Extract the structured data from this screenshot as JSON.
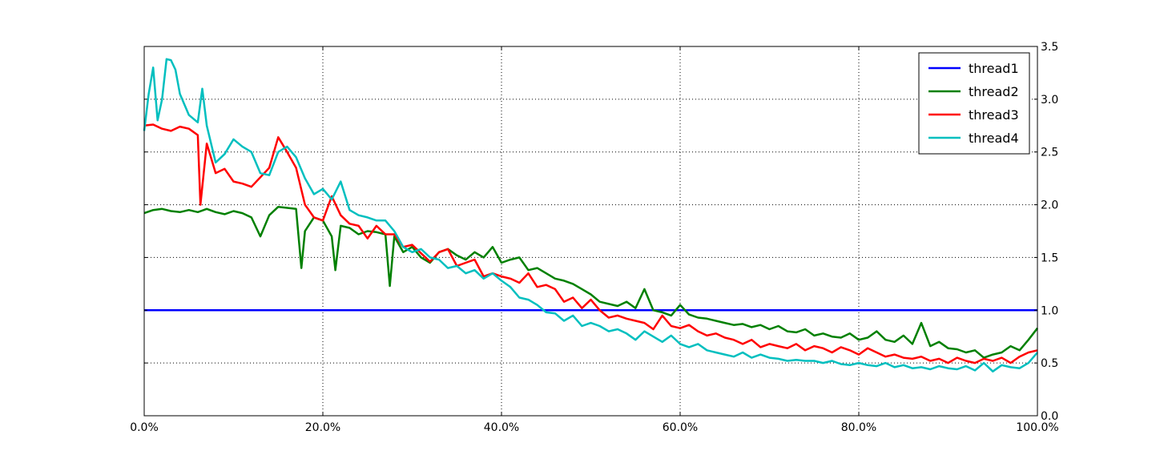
{
  "chart_data": {
    "type": "line",
    "title": "",
    "xlabel": "",
    "ylabel": "",
    "xlim": [
      0,
      100
    ],
    "ylim": [
      0,
      3.5
    ],
    "x_ticks": [
      0,
      20,
      40,
      60,
      80,
      100
    ],
    "x_tick_labels": [
      "0.0%",
      "20.0%",
      "40.0%",
      "60.0%",
      "80.0%",
      "100.0%"
    ],
    "y_ticks": [
      0,
      0.5,
      1.0,
      1.5,
      2.0,
      2.5,
      3.0,
      3.5
    ],
    "y_tick_labels": [
      "0.0",
      "0.5",
      "1.0",
      "1.5",
      "2.0",
      "2.5",
      "3.0",
      "3.5"
    ],
    "y_axis_side": "right",
    "grid": true,
    "legend_position": "top-right",
    "series": [
      {
        "name": "thread1",
        "color": "#0000ff",
        "x": [
          0,
          100
        ],
        "y": [
          1.0,
          1.0
        ]
      },
      {
        "name": "thread2",
        "color": "#008000",
        "x": [
          0,
          1,
          2,
          3,
          4,
          5,
          6,
          7,
          8,
          9,
          10,
          11,
          12,
          13,
          14,
          15,
          16,
          17,
          17.6,
          18,
          19,
          20,
          21,
          21.4,
          22,
          23,
          24,
          25,
          26,
          27,
          27.5,
          28,
          29,
          30,
          31,
          32,
          33,
          34,
          35,
          36,
          37,
          38,
          39,
          40,
          41,
          42,
          43,
          44,
          45,
          46,
          47,
          48,
          49,
          50,
          51,
          52,
          53,
          54,
          55,
          56,
          57,
          58,
          59,
          60,
          61,
          62,
          63,
          64,
          65,
          66,
          67,
          68,
          69,
          70,
          71,
          72,
          73,
          74,
          75,
          76,
          77,
          78,
          79,
          80,
          81,
          82,
          83,
          84,
          85,
          86,
          87,
          88,
          89,
          90,
          91,
          92,
          93,
          94,
          95,
          96,
          97,
          98,
          99,
          100
        ],
        "y": [
          1.92,
          1.95,
          1.96,
          1.94,
          1.93,
          1.95,
          1.93,
          1.96,
          1.93,
          1.91,
          1.94,
          1.92,
          1.88,
          1.7,
          1.9,
          1.98,
          1.97,
          1.96,
          1.4,
          1.75,
          1.88,
          1.85,
          1.7,
          1.38,
          1.8,
          1.78,
          1.72,
          1.75,
          1.74,
          1.72,
          1.23,
          1.7,
          1.55,
          1.6,
          1.5,
          1.45,
          1.55,
          1.58,
          1.52,
          1.48,
          1.55,
          1.5,
          1.6,
          1.45,
          1.48,
          1.5,
          1.38,
          1.4,
          1.35,
          1.3,
          1.28,
          1.25,
          1.2,
          1.15,
          1.08,
          1.06,
          1.04,
          1.08,
          1.02,
          1.2,
          1.0,
          0.98,
          0.95,
          1.05,
          0.96,
          0.93,
          0.92,
          0.9,
          0.88,
          0.86,
          0.87,
          0.84,
          0.86,
          0.82,
          0.85,
          0.8,
          0.79,
          0.82,
          0.76,
          0.78,
          0.75,
          0.74,
          0.78,
          0.72,
          0.74,
          0.8,
          0.72,
          0.7,
          0.76,
          0.68,
          0.88,
          0.66,
          0.7,
          0.64,
          0.63,
          0.6,
          0.62,
          0.55,
          0.58,
          0.6,
          0.66,
          0.62,
          0.72,
          0.83
        ]
      },
      {
        "name": "thread3",
        "color": "#ff0000",
        "x": [
          0,
          1,
          2,
          3,
          4,
          5,
          6,
          6.3,
          7,
          8,
          9,
          10,
          11,
          12,
          13,
          14,
          15,
          16,
          17,
          18,
          19,
          20,
          21,
          22,
          23,
          24,
          25,
          26,
          27,
          28,
          29,
          30,
          31,
          32,
          33,
          34,
          35,
          36,
          37,
          38,
          39,
          40,
          41,
          42,
          43,
          44,
          45,
          46,
          47,
          48,
          49,
          50,
          51,
          52,
          53,
          54,
          55,
          56,
          57,
          58,
          59,
          60,
          61,
          62,
          63,
          64,
          65,
          66,
          67,
          68,
          69,
          70,
          71,
          72,
          73,
          74,
          75,
          76,
          77,
          78,
          79,
          80,
          81,
          82,
          83,
          84,
          85,
          86,
          87,
          88,
          89,
          90,
          91,
          92,
          93,
          94,
          95,
          96,
          97,
          98,
          99,
          100
        ],
        "y": [
          2.75,
          2.76,
          2.72,
          2.7,
          2.74,
          2.72,
          2.66,
          2.0,
          2.58,
          2.3,
          2.34,
          2.22,
          2.2,
          2.17,
          2.26,
          2.35,
          2.64,
          2.5,
          2.35,
          2.0,
          1.88,
          1.85,
          2.08,
          1.9,
          1.82,
          1.8,
          1.68,
          1.8,
          1.72,
          1.72,
          1.6,
          1.62,
          1.54,
          1.46,
          1.55,
          1.58,
          1.42,
          1.45,
          1.48,
          1.32,
          1.35,
          1.32,
          1.3,
          1.26,
          1.35,
          1.22,
          1.24,
          1.2,
          1.08,
          1.12,
          1.02,
          1.1,
          1.0,
          0.93,
          0.95,
          0.92,
          0.9,
          0.88,
          0.82,
          0.95,
          0.85,
          0.83,
          0.86,
          0.8,
          0.76,
          0.78,
          0.74,
          0.72,
          0.68,
          0.72,
          0.65,
          0.68,
          0.66,
          0.64,
          0.68,
          0.62,
          0.66,
          0.64,
          0.6,
          0.65,
          0.62,
          0.58,
          0.64,
          0.6,
          0.56,
          0.58,
          0.55,
          0.54,
          0.56,
          0.52,
          0.54,
          0.5,
          0.55,
          0.52,
          0.5,
          0.54,
          0.52,
          0.55,
          0.5,
          0.56,
          0.6,
          0.62
        ]
      },
      {
        "name": "thread4",
        "color": "#00bfbf",
        "x": [
          0,
          0.5,
          1,
          1.5,
          2,
          2.5,
          3,
          3.5,
          4,
          5,
          6,
          6.5,
          7,
          8,
          9,
          10,
          11,
          12,
          13,
          14,
          15,
          16,
          17,
          18,
          19,
          20,
          21,
          22,
          23,
          24,
          25,
          26,
          27,
          28,
          29,
          30,
          31,
          32,
          33,
          34,
          35,
          36,
          37,
          38,
          39,
          40,
          41,
          42,
          43,
          44,
          45,
          46,
          47,
          48,
          49,
          50,
          51,
          52,
          53,
          54,
          55,
          56,
          57,
          58,
          59,
          60,
          61,
          62,
          63,
          64,
          65,
          66,
          67,
          68,
          69,
          70,
          71,
          72,
          73,
          74,
          75,
          76,
          77,
          78,
          79,
          80,
          81,
          82,
          83,
          84,
          85,
          86,
          87,
          88,
          89,
          90,
          91,
          92,
          93,
          94,
          95,
          96,
          97,
          98,
          99,
          100
        ],
        "y": [
          2.7,
          3.05,
          3.3,
          2.8,
          3.0,
          3.38,
          3.37,
          3.28,
          3.05,
          2.85,
          2.78,
          3.1,
          2.75,
          2.4,
          2.48,
          2.62,
          2.55,
          2.5,
          2.3,
          2.28,
          2.5,
          2.55,
          2.45,
          2.25,
          2.1,
          2.15,
          2.05,
          2.22,
          1.95,
          1.9,
          1.88,
          1.85,
          1.85,
          1.75,
          1.6,
          1.55,
          1.58,
          1.5,
          1.48,
          1.4,
          1.42,
          1.35,
          1.38,
          1.3,
          1.35,
          1.28,
          1.22,
          1.12,
          1.1,
          1.05,
          0.98,
          0.97,
          0.9,
          0.95,
          0.85,
          0.88,
          0.85,
          0.8,
          0.82,
          0.78,
          0.72,
          0.8,
          0.75,
          0.7,
          0.76,
          0.68,
          0.65,
          0.68,
          0.62,
          0.6,
          0.58,
          0.56,
          0.6,
          0.55,
          0.58,
          0.55,
          0.54,
          0.52,
          0.53,
          0.52,
          0.52,
          0.5,
          0.52,
          0.49,
          0.48,
          0.5,
          0.48,
          0.47,
          0.5,
          0.46,
          0.48,
          0.45,
          0.46,
          0.44,
          0.47,
          0.45,
          0.44,
          0.47,
          0.43,
          0.5,
          0.42,
          0.48,
          0.46,
          0.45,
          0.5,
          0.6
        ]
      }
    ]
  }
}
